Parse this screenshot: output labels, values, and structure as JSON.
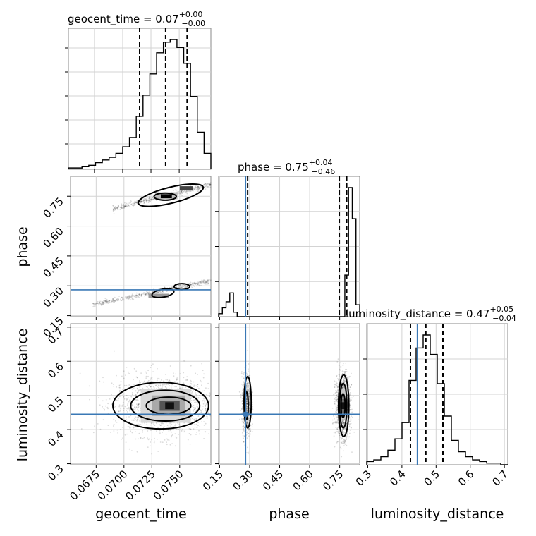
{
  "chart_data": {
    "type": "corner",
    "parameters": [
      "geocent_time",
      "phase",
      "luminosity_distance"
    ],
    "axis_labels": [
      "geocent_time",
      "phase",
      "luminosity_distance"
    ],
    "truth": {
      "phase": 0.28,
      "luminosity_distance": 0.445
    },
    "titles": [
      {
        "param": "geocent_time",
        "text": "geocent_time = 0.07",
        "upper": "+0.00",
        "lower": "−0.00"
      },
      {
        "param": "phase",
        "text": "phase = 0.75",
        "upper": "+0.04",
        "lower": "−0.46"
      },
      {
        "param": "luminosity_distance",
        "text": "luminosity_distance = 0.47",
        "upper": "+0.05",
        "lower": "−0.04"
      }
    ],
    "ranges": {
      "geocent_time": [
        0.0652,
        0.0778
      ],
      "phase": [
        0.145,
        0.85
      ],
      "luminosity_distance": [
        0.297,
        0.71
      ]
    },
    "ticks": {
      "geocent_time": [
        0.0675,
        0.07,
        0.0725,
        0.075
      ],
      "geocent_time_labels": [
        "0.0675",
        "0.0700",
        "0.0725",
        "0.0750"
      ],
      "phase": [
        0.15,
        0.3,
        0.45,
        0.6,
        0.75
      ],
      "phase_labels": [
        "0.15",
        "0.30",
        "0.45",
        "0.60",
        "0.75"
      ],
      "luminosity_distance": [
        0.3,
        0.4,
        0.5,
        0.6,
        0.7
      ],
      "luminosity_distance_labels": [
        "0.3",
        "0.4",
        "0.5",
        "0.6",
        "0.7"
      ]
    },
    "quantiles": {
      "geocent_time": [
        0.0715,
        0.0738,
        0.0757
      ],
      "phase": [
        0.29,
        0.748,
        0.785
      ],
      "luminosity_distance": [
        0.425,
        0.47,
        0.52
      ]
    },
    "histograms": {
      "geocent_time": {
        "edges_range": [
          0.0652,
          0.0778
        ],
        "counts": [
          1,
          1,
          2,
          3,
          5,
          7,
          9,
          12,
          17,
          24,
          40,
          56,
          72,
          88,
          96,
          98,
          92,
          80,
          55,
          28,
          12
        ]
      },
      "phase": {
        "edges_range": [
          0.145,
          0.85
        ],
        "counts": [
          2,
          6,
          10,
          16,
          3,
          0,
          0,
          0,
          0,
          0,
          0,
          0,
          0,
          0,
          0,
          0,
          0,
          0,
          0,
          0,
          0,
          0,
          0,
          0,
          0,
          0,
          0,
          0,
          0,
          0,
          0,
          0,
          0,
          0,
          28,
          87,
          66,
          8
        ]
      },
      "luminosity_distance": {
        "edges_range": [
          0.297,
          0.71
        ],
        "counts": [
          2,
          3,
          5,
          9,
          16,
          26,
          52,
          72,
          80,
          68,
          50,
          30,
          15,
          8,
          5,
          3,
          2,
          1,
          1,
          0
        ]
      }
    },
    "grid": true
  }
}
